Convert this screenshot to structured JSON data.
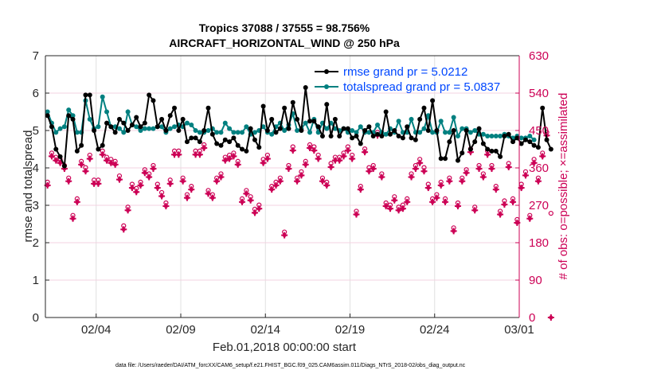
{
  "chart_data": {
    "type": "line",
    "title": "Tropics 37088 / 37555 = 98.756%",
    "subtitle": "AIRCRAFT_HORIZONTAL_WIND @ 250 hPa",
    "xlabel": "Feb.01,2018 00:00:00 start",
    "ylabel": "rmse and totalspread",
    "y2label": "# of obs: o=possible; ×=assimilated",
    "footnote": "data file: /Users/raeder/DAI/ATM_forcXX/CAM6_setup/f.e21.FHIST_BGC.f09_025.CAM6assim.011/Diags_NTrS_2018-02/obs_diag_output.nc",
    "xlim": [
      0,
      28
    ],
    "ylim": [
      0,
      7
    ],
    "y2lim": [
      0,
      630
    ],
    "x_ticks": [
      3,
      8,
      13,
      18,
      23,
      28
    ],
    "x_tick_labels": [
      "02/04",
      "02/09",
      "02/14",
      "02/19",
      "02/24",
      "03/01"
    ],
    "y_ticks": [
      0,
      1,
      2,
      3,
      4,
      5,
      6,
      7
    ],
    "y_tick_labels": [
      "0",
      "1",
      "2",
      "3",
      "4",
      "5",
      "6",
      "7"
    ],
    "y2_ticks": [
      0,
      90,
      180,
      270,
      360,
      450,
      540,
      630
    ],
    "y2_tick_labels": [
      "0",
      "90",
      "180",
      "270",
      "360",
      "450",
      "540",
      "630"
    ],
    "grid": true,
    "legend_position": "top-right",
    "colors": {
      "rmse": "#000000",
      "spread": "#008080",
      "obs": "#cc0055",
      "legend_text": "#0047ff",
      "grid": "#f0c8d8"
    },
    "legend": [
      {
        "name": "rmse grand pr = 5.0212",
        "color": "#000000"
      },
      {
        "name": "totalspread grand pr = 5.0837",
        "color": "#008080"
      }
    ],
    "x_step_days": 0.25,
    "series": [
      {
        "name": "rmse",
        "axis": "left",
        "values": [
          5.4,
          5.1,
          4.5,
          4.3,
          4.05,
          5.4,
          5.3,
          4.45,
          4.6,
          5.95,
          5.95,
          5.0,
          4.5,
          4.6,
          5.2,
          5.1,
          4.95,
          5.3,
          5.2,
          5.0,
          5.15,
          5.35,
          5.1,
          5.2,
          5.95,
          5.8,
          5.1,
          5.3,
          5.0,
          5.4,
          5.6,
          5.0,
          5.3,
          4.7,
          4.8,
          4.8,
          4.7,
          5.0,
          5.6,
          4.9,
          4.65,
          4.6,
          4.75,
          4.7,
          4.8,
          4.6,
          4.5,
          4.45,
          5.05,
          4.75,
          4.55,
          5.65,
          5.0,
          5.3,
          4.95,
          5.05,
          5.6,
          5.05,
          5.75,
          5.3,
          5.0,
          6.15,
          5.25,
          5.25,
          5.1,
          4.85,
          5.7,
          4.85,
          5.3,
          4.85,
          5.05,
          5.05,
          4.8,
          4.85,
          4.65,
          5.0,
          5.1,
          4.85,
          4.9,
          4.85,
          5.5,
          4.9,
          5.0,
          4.85,
          4.8,
          5.1,
          4.8,
          4.75,
          5.3,
          5.6,
          5.0,
          5.8,
          5.0,
          4.25,
          4.25,
          4.7,
          5.0,
          4.2,
          4.4,
          5.0,
          4.5,
          4.7,
          5.05,
          4.65,
          4.5,
          4.45,
          4.45,
          4.3,
          4.85,
          4.9,
          4.7,
          4.8,
          4.65,
          4.75,
          4.7,
          4.6,
          4.55,
          5.6,
          4.75,
          4.5
        ]
      },
      {
        "name": "totalspread",
        "axis": "left",
        "values": [
          5.5,
          5.2,
          4.95,
          5.05,
          5.1,
          5.55,
          5.4,
          4.95,
          4.95,
          5.8,
          5.3,
          5.05,
          5.1,
          5.9,
          5.5,
          5.1,
          5.1,
          5.05,
          4.95,
          5.5,
          5.15,
          5.1,
          5.0,
          5.05,
          5.05,
          5.05,
          5.1,
          5.1,
          4.95,
          5.05,
          5.1,
          5.15,
          5.1,
          5.2,
          5.15,
          5.0,
          4.95,
          4.95,
          5.0,
          5.05,
          4.95,
          4.95,
          5.2,
          5.05,
          4.95,
          4.95,
          4.95,
          5.1,
          4.9,
          4.95,
          5.0,
          5.1,
          4.95,
          4.9,
          5.1,
          5.2,
          5.0,
          5.15,
          5.45,
          5.0,
          5.05,
          5.2,
          4.95,
          5.3,
          4.95,
          5.2,
          5.05,
          5.2,
          5.05,
          5.0,
          5.05,
          4.95,
          5.0,
          4.95,
          5.1,
          4.95,
          4.95,
          4.95,
          5.15,
          4.95,
          4.9,
          5.05,
          4.95,
          5.25,
          4.95,
          4.95,
          5.3,
          4.95,
          4.95,
          5.05,
          5.4,
          4.95,
          4.95,
          5.25,
          4.95,
          4.95,
          5.35,
          4.85,
          5.05,
          5.05,
          4.95,
          5.0,
          4.9,
          4.9,
          4.85,
          4.85,
          4.85,
          4.85,
          4.9,
          4.85,
          4.8,
          4.85,
          4.8,
          4.8,
          4.85,
          4.75
        ]
      },
      {
        "name": "obs_possible",
        "axis": "right",
        "values": [
          320,
          390,
          380,
          375,
          360,
          330,
          240,
          280,
          370,
          355,
          385,
          325,
          325,
          395,
          380,
          375,
          370,
          335,
          215,
          260,
          315,
          305,
          320,
          350,
          340,
          360,
          315,
          295,
          270,
          325,
          395,
          395,
          330,
          290,
          310,
          395,
          395,
          410,
          300,
          290,
          330,
          340,
          380,
          385,
          390,
          370,
          280,
          300,
          285,
          255,
          265,
          375,
          385,
          310,
          320,
          330,
          200,
          360,
          405,
          330,
          345,
          370,
          410,
          405,
          385,
          330,
          320,
          365,
          380,
          380,
          390,
          405,
          385,
          250,
          310,
          400,
          355,
          360,
          440,
          340,
          270,
          265,
          285,
          260,
          265,
          280,
          340,
          360,
          375,
          355,
          315,
          280,
          290,
          320,
          280,
          330,
          210,
          270,
          330,
          350,
          400,
          260,
          360,
          340,
          395,
          360,
          310,
          250,
          275,
          365,
          280,
          230,
          315,
          345,
          240,
          375,
          330,
          390,
          440,
          245
        ]
      },
      {
        "name": "obs_assimilated",
        "axis": "right",
        "values": [
          318,
          388,
          378,
          372,
          358,
          328,
          238,
          278,
          368,
          352,
          382,
          322,
          322,
          392,
          378,
          372,
          368,
          332,
          212,
          258,
          312,
          302,
          318,
          348,
          338,
          358,
          312,
          292,
          268,
          322,
          392,
          392,
          328,
          288,
          308,
          392,
          392,
          408,
          298,
          288,
          328,
          338,
          378,
          382,
          388,
          368,
          278,
          298,
          282,
          252,
          262,
          372,
          382,
          308,
          318,
          328,
          198,
          358,
          402,
          328,
          342,
          368,
          408,
          402,
          382,
          328,
          318,
          362,
          378,
          378,
          388,
          402,
          382,
          248,
          308,
          398,
          352,
          358,
          438,
          338,
          268,
          262,
          282,
          258,
          262,
          278,
          338,
          358,
          372,
          352,
          312,
          278,
          288,
          318,
          278,
          328,
          208,
          268,
          328,
          348,
          398,
          258,
          358,
          338,
          392,
          358,
          308,
          248,
          272,
          362,
          278,
          228,
          312,
          342,
          238,
          372,
          328,
          388,
          438,
          0
        ]
      }
    ]
  }
}
